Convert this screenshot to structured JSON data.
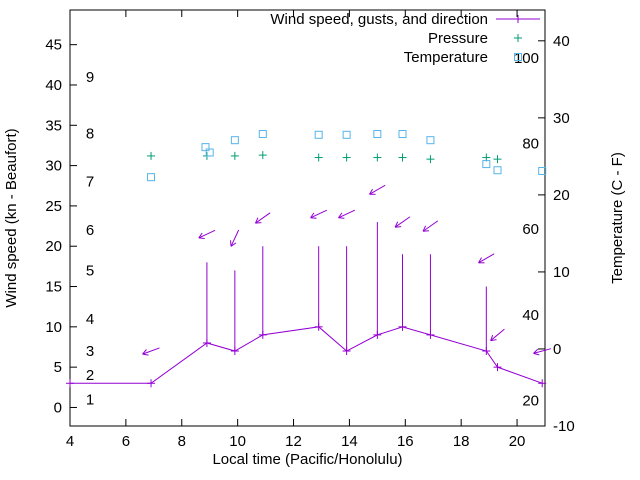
{
  "chart_data": {
    "type": "line",
    "title": "",
    "xlabel": "Local time (Pacific/Honolulu)",
    "ylabel": "Wind speed (kn - Beaufort)",
    "y2label": "Temperature (C - F)",
    "grid": false,
    "legend_position": "top-right-inside",
    "x_range": [
      4,
      21
    ],
    "x_ticks": [
      4,
      6,
      8,
      10,
      12,
      14,
      16,
      18,
      20
    ],
    "y_range": [
      -2.3,
      49.3
    ],
    "y_ticks": [
      0,
      5,
      10,
      15,
      20,
      25,
      30,
      35,
      40,
      45
    ],
    "beaufort_ticks": [
      {
        "b": "1",
        "kn": 1
      },
      {
        "b": "2",
        "kn": 4
      },
      {
        "b": "3",
        "kn": 7
      },
      {
        "b": "4",
        "kn": 11
      },
      {
        "b": "5",
        "kn": 17
      },
      {
        "b": "6",
        "kn": 22
      },
      {
        "b": "7",
        "kn": 28
      },
      {
        "b": "8",
        "kn": 34
      },
      {
        "b": "9",
        "kn": 41
      }
    ],
    "y2_range": [
      -10,
      44
    ],
    "y2_ticks": [
      -10,
      0,
      10,
      20,
      30,
      40
    ],
    "fahrenheit_ticks": [
      {
        "f": "20",
        "c": -6.7
      },
      {
        "f": "40",
        "c": 4.4
      },
      {
        "f": "60",
        "c": 15.6
      },
      {
        "f": "80",
        "c": 26.7
      },
      {
        "f": "100",
        "c": 37.8
      }
    ],
    "legend": [
      {
        "label": "Wind speed, gusts, and direction",
        "color": "#9400d3",
        "marker": "plus-line"
      },
      {
        "label": "Pressure",
        "color": "#009e73",
        "marker": "plus"
      },
      {
        "label": "Temperature",
        "color": "#56b4e9",
        "marker": "square"
      }
    ],
    "series": {
      "wind": {
        "name": "Wind speed, gusts, and direction",
        "color": "#9400d3",
        "axis": "left",
        "points": [
          {
            "t": 4.0,
            "speed": 3,
            "gust": null,
            "dir_y": null,
            "dir_angle": null
          },
          {
            "t": 6.9,
            "speed": 3,
            "gust": null,
            "dir_y": 7,
            "dir_angle": 200
          },
          {
            "t": 8.9,
            "speed": 8,
            "gust": 18,
            "dir_y": 21.5,
            "dir_angle": 205
          },
          {
            "t": 9.9,
            "speed": 7,
            "gust": 17,
            "dir_y": 21,
            "dir_angle": 245
          },
          {
            "t": 10.9,
            "speed": 9,
            "gust": 20,
            "dir_y": 23.5,
            "dir_angle": 215
          },
          {
            "t": 12.9,
            "speed": 10,
            "gust": 20,
            "dir_y": 24,
            "dir_angle": 205
          },
          {
            "t": 13.9,
            "speed": 7,
            "gust": 20,
            "dir_y": 24,
            "dir_angle": 205
          },
          {
            "t": 15.0,
            "speed": 9,
            "gust": 23,
            "dir_y": 27,
            "dir_angle": 210
          },
          {
            "t": 15.9,
            "speed": 10,
            "gust": 19,
            "dir_y": 23,
            "dir_angle": 215
          },
          {
            "t": 16.9,
            "speed": 9,
            "gust": 19,
            "dir_y": 22.5,
            "dir_angle": 215
          },
          {
            "t": 18.9,
            "speed": 7,
            "gust": 15,
            "dir_y": 18.5,
            "dir_angle": 210
          },
          {
            "t": 19.3,
            "speed": 5,
            "gust": null,
            "dir_y": 9,
            "dir_angle": 220
          },
          {
            "t": 20.9,
            "speed": 3,
            "gust": null,
            "dir_y": 7,
            "dir_angle": 195
          }
        ]
      },
      "pressure": {
        "name": "Pressure",
        "color": "#009e73",
        "axis": "left",
        "t": [
          6.9,
          8.9,
          9.9,
          10.9,
          12.9,
          13.9,
          15.0,
          15.9,
          16.9,
          18.9,
          19.3
        ],
        "value": [
          31.2,
          31.2,
          31.2,
          31.3,
          31.0,
          31.0,
          31.0,
          31.0,
          30.8,
          31.0,
          30.8
        ]
      },
      "temperature": {
        "name": "Temperature",
        "color": "#56b4e9",
        "axis": "right",
        "t": [
          6.9,
          8.85,
          9.0,
          9.9,
          10.9,
          12.9,
          13.9,
          15.0,
          15.9,
          16.9,
          18.9,
          19.3,
          20.9
        ],
        "c": [
          22.3,
          26.2,
          25.5,
          27.1,
          27.9,
          27.8,
          27.8,
          27.9,
          27.9,
          27.1,
          24.0,
          23.2,
          23.1
        ]
      }
    }
  }
}
